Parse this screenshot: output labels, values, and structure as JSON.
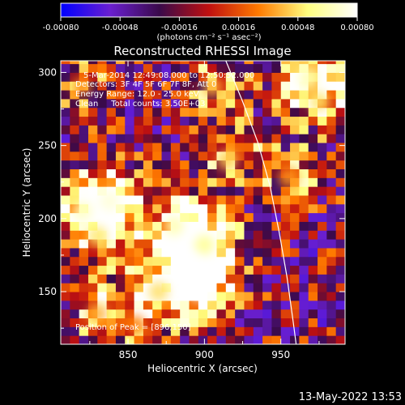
{
  "chart_data": {
    "type": "heatmap",
    "title": "Reconstructed RHESSI Image",
    "xlabel": "Heliocentric X (arcsec)",
    "ylabel": "Heliocentric Y (arcsec)",
    "xlim": [
      806,
      992
    ],
    "ylim": [
      114,
      308
    ],
    "xticks": [
      850,
      900,
      950
    ],
    "yticks": [
      150,
      200,
      250,
      300
    ],
    "colorbar": {
      "range": [
        -0.0008,
        0.0008
      ],
      "ticks": [
        -0.0008,
        -0.00048,
        -0.00016,
        0.00016,
        0.00048,
        0.0008
      ],
      "tick_labels": [
        "-0.00080",
        "-0.00048",
        "-0.00016",
        "0.00016",
        "0.00048",
        "0.00080"
      ],
      "unit_label": "(photons cm⁻² s⁻¹ asec⁻²)",
      "colors": [
        "#0000ff",
        "#6a1fd0",
        "#3a0a4a",
        "#c01010",
        "#ff7a00",
        "#ffff80",
        "#ffffff"
      ]
    },
    "info": [
      "5-Mar-2014 12:49:08.000 to 12:50:52.000",
      "Detectors: 3F 4F 5F 6F 7F 8F, Att 0",
      "Energy Range: 12.0 - 25.0 keV",
      "Clean     Total counts: 3.50E+03"
    ],
    "peak_label": "Position of Peak = [896,150]",
    "limb_points": [
      [
        914,
        308
      ],
      [
        925,
        280
      ],
      [
        935,
        252
      ],
      [
        943,
        222
      ],
      [
        949,
        190
      ],
      [
        954,
        160
      ],
      [
        958,
        130
      ],
      [
        960,
        114
      ]
    ],
    "hot_regions": [
      {
        "x": 820,
        "y": 205,
        "intensity": 0.00072
      },
      {
        "x": 838,
        "y": 212,
        "intensity": 0.00075
      },
      {
        "x": 830,
        "y": 188,
        "intensity": 0.0006
      },
      {
        "x": 880,
        "y": 195,
        "intensity": 0.0007
      },
      {
        "x": 890,
        "y": 168,
        "intensity": 0.0008
      },
      {
        "x": 896,
        "y": 150,
        "intensity": 0.0008
      },
      {
        "x": 900,
        "y": 182,
        "intensity": 0.00066
      },
      {
        "x": 870,
        "y": 150,
        "intensity": 0.00058
      },
      {
        "x": 915,
        "y": 240,
        "intensity": 0.00055
      },
      {
        "x": 905,
        "y": 290,
        "intensity": 0.0005
      },
      {
        "x": 968,
        "y": 296,
        "intensity": 0.0007
      },
      {
        "x": 975,
        "y": 280,
        "intensity": 0.0006
      },
      {
        "x": 955,
        "y": 228,
        "intensity": 0.00045
      },
      {
        "x": 830,
        "y": 135,
        "intensity": 0.0005
      },
      {
        "x": 855,
        "y": 127,
        "intensity": 0.0004
      },
      {
        "x": 820,
        "y": 290,
        "intensity": 0.00042
      }
    ]
  },
  "footer": {
    "date": "13-May-2022 13:53"
  }
}
